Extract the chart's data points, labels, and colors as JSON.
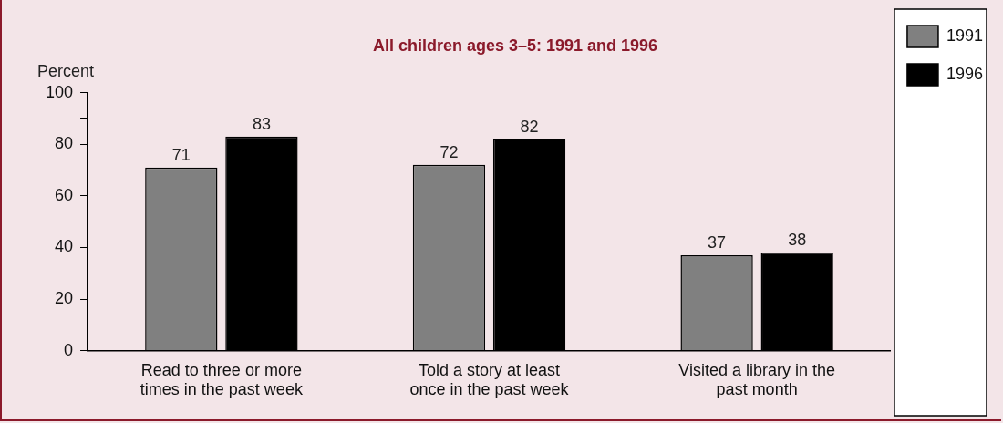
{
  "chart_data": {
    "type": "bar",
    "title": "All children ages 3–5: 1991 and 1996",
    "ylabel": "Percent",
    "categories": [
      "Read to three or more times in the past week",
      "Told a story at least once in the past week",
      "Visited a library in the past month"
    ],
    "series": [
      {
        "name": "1991",
        "color": "#808080",
        "values": [
          71,
          72,
          37
        ]
      },
      {
        "name": "1996",
        "color": "#000000",
        "values": [
          83,
          82,
          38
        ]
      }
    ],
    "ylim": [
      0,
      100
    ],
    "yticks": [
      0,
      {
        "value": 10,
        "label": null
      },
      20,
      {
        "value": 30,
        "label": null
      },
      40,
      {
        "value": 50,
        "label": null
      },
      60,
      {
        "value": 70,
        "label": null
      },
      80,
      {
        "value": 90,
        "label": null
      },
      100
    ],
    "grid": false,
    "legend": "top right",
    "data_labels": true
  }
}
